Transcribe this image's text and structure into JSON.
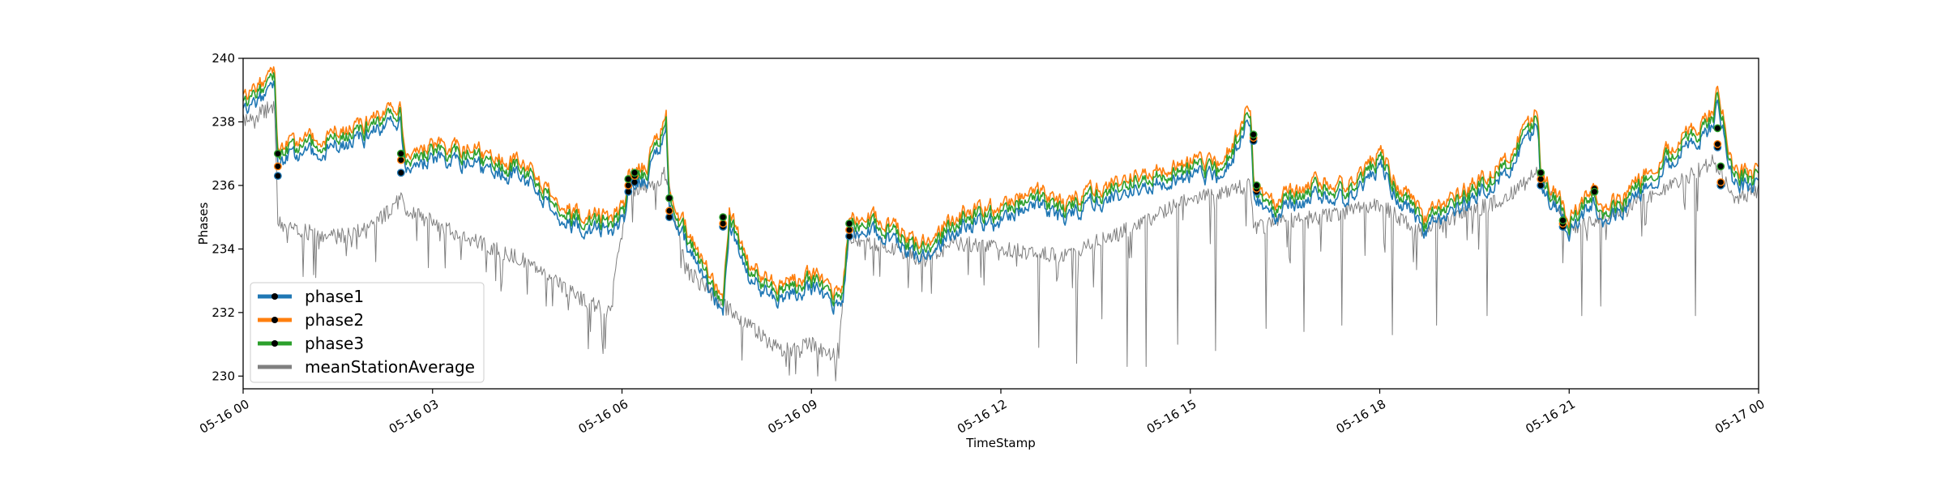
{
  "chart_data": {
    "type": "line",
    "title": "",
    "xlabel": "TimeStamp",
    "ylabel": "Phases",
    "ylim": [
      229.6,
      240
    ],
    "xlim_hours": [
      0,
      24
    ],
    "grid": false,
    "legend_placement": "lower-left",
    "x_ticks": [
      {
        "hour": 0,
        "label": "05-16 00"
      },
      {
        "hour": 3,
        "label": "05-16 03"
      },
      {
        "hour": 6,
        "label": "05-16 06"
      },
      {
        "hour": 9,
        "label": "05-16 09"
      },
      {
        "hour": 12,
        "label": "05-16 12"
      },
      {
        "hour": 15,
        "label": "05-16 15"
      },
      {
        "hour": 18,
        "label": "05-16 18"
      },
      {
        "hour": 21,
        "label": "05-16 21"
      },
      {
        "hour": 24,
        "label": "05-17 00"
      }
    ],
    "y_ticks": [
      230,
      232,
      234,
      236,
      238,
      240
    ],
    "series": [
      {
        "name": "phase1",
        "color": "#1f77b4",
        "marker": "circle-black"
      },
      {
        "name": "phase2",
        "color": "#ff7f0e",
        "marker": "circle-black"
      },
      {
        "name": "phase3",
        "color": "#2ca02c",
        "marker": "circle-black"
      },
      {
        "name": "meanStationAverage",
        "color": "#808080",
        "marker": "none"
      }
    ],
    "phase2_trend": {
      "hour": [
        0.0,
        0.5,
        0.55,
        1.0,
        2.0,
        2.5,
        2.55,
        3.5,
        4.5,
        5.2,
        5.8,
        6.05,
        6.1,
        6.4,
        6.7,
        6.75,
        7.2,
        7.6,
        7.7,
        8.0,
        8.5,
        9.0,
        9.5,
        9.6,
        10.0,
        10.8,
        11.3,
        12.0,
        12.5,
        13.0,
        14.0,
        15.0,
        15.5,
        15.95,
        16.0,
        16.3,
        17.0,
        17.5,
        18.0,
        18.3,
        18.7,
        19.2,
        20.0,
        20.5,
        20.55,
        21.0,
        21.4,
        21.5,
        22.0,
        22.5,
        23.3,
        23.35,
        23.6,
        23.9,
        24.0
      ],
      "value": [
        238.8,
        239.5,
        237.2,
        237.4,
        238.0,
        238.6,
        237.2,
        237.2,
        236.6,
        235.2,
        235.0,
        235.4,
        236.2,
        236.7,
        238.2,
        235.6,
        234.0,
        232.4,
        235.2,
        233.5,
        232.8,
        233.2,
        232.6,
        235.0,
        235.0,
        234.2,
        235.1,
        235.3,
        235.9,
        235.4,
        236.3,
        236.8,
        236.6,
        238.6,
        236.2,
        235.5,
        236.2,
        236.0,
        237.1,
        236.0,
        235.0,
        235.6,
        236.8,
        238.4,
        236.5,
        235.0,
        235.9,
        235.3,
        235.9,
        237.0,
        238.3,
        239.2,
        236.5,
        236.4,
        236.8
      ]
    },
    "station_trend": {
      "hour": [
        0.0,
        0.5,
        0.55,
        0.8,
        1.5,
        2.0,
        2.5,
        2.6,
        3.5,
        4.5,
        5.2,
        5.8,
        6.1,
        6.5,
        6.7,
        7.0,
        7.5,
        8.0,
        8.5,
        9.0,
        9.4,
        9.6,
        10.0,
        10.8,
        11.3,
        12.0,
        13.0,
        14.0,
        15.0,
        15.95,
        16.0,
        16.3,
        17.0,
        18.0,
        18.6,
        19.2,
        20.0,
        20.5,
        21.0,
        21.5,
        22.0,
        23.0,
        23.3,
        23.6,
        24.0
      ],
      "value": [
        238.0,
        238.5,
        234.8,
        234.6,
        234.4,
        234.6,
        235.6,
        235.2,
        234.4,
        233.6,
        232.6,
        232.0,
        235.8,
        236.0,
        236.4,
        233.4,
        232.4,
        231.6,
        230.8,
        231.0,
        230.6,
        234.4,
        234.2,
        233.6,
        234.2,
        234.0,
        233.8,
        234.6,
        235.6,
        236.0,
        234.6,
        234.8,
        235.0,
        235.4,
        234.6,
        235.0,
        235.6,
        236.4,
        234.6,
        235.0,
        235.4,
        236.4,
        236.8,
        235.6,
        235.8
      ]
    },
    "station_dips": [
      {
        "hour": 0.7,
        "value": 234.2
      },
      {
        "hour": 1.2,
        "value": 234.0
      },
      {
        "hour": 1.8,
        "value": 234.0
      },
      {
        "hour": 2.1,
        "value": 233.6
      },
      {
        "hour": 3.2,
        "value": 233.4
      },
      {
        "hour": 4.0,
        "value": 233.0
      },
      {
        "hour": 4.8,
        "value": 232.2
      },
      {
        "hour": 5.5,
        "value": 231.4
      },
      {
        "hour": 7.9,
        "value": 230.5
      },
      {
        "hour": 8.6,
        "value": 230.3
      },
      {
        "hour": 9.1,
        "value": 230.0
      },
      {
        "hour": 10.9,
        "value": 232.6
      },
      {
        "hour": 12.6,
        "value": 230.9
      },
      {
        "hour": 13.2,
        "value": 230.4
      },
      {
        "hour": 13.6,
        "value": 231.8
      },
      {
        "hour": 14.0,
        "value": 230.3
      },
      {
        "hour": 14.3,
        "value": 230.3
      },
      {
        "hour": 14.8,
        "value": 231.0
      },
      {
        "hour": 15.4,
        "value": 230.8
      },
      {
        "hour": 16.2,
        "value": 231.5
      },
      {
        "hour": 16.8,
        "value": 231.4
      },
      {
        "hour": 17.4,
        "value": 231.6
      },
      {
        "hour": 18.2,
        "value": 231.3
      },
      {
        "hour": 18.9,
        "value": 231.6
      },
      {
        "hour": 19.7,
        "value": 231.9
      },
      {
        "hour": 21.2,
        "value": 231.9
      },
      {
        "hour": 21.5,
        "value": 232.2
      },
      {
        "hour": 23.0,
        "value": 231.9
      }
    ],
    "markers": [
      {
        "hour": 0.55,
        "values": [
          236.3,
          236.6,
          237.0
        ]
      },
      {
        "hour": 2.5,
        "values": [
          236.4,
          236.8,
          237.0
        ]
      },
      {
        "hour": 6.1,
        "values": [
          235.8,
          236.0,
          236.2
        ]
      },
      {
        "hour": 6.2,
        "values": [
          236.1,
          236.3,
          236.4
        ]
      },
      {
        "hour": 6.75,
        "values": [
          235.0,
          235.2,
          235.6
        ]
      },
      {
        "hour": 7.6,
        "values": [
          234.7,
          234.8,
          235.0
        ]
      },
      {
        "hour": 9.6,
        "values": [
          234.4,
          234.6,
          234.8
        ]
      },
      {
        "hour": 16.0,
        "values": [
          237.4,
          237.5,
          237.6
        ]
      },
      {
        "hour": 16.05,
        "values": [
          235.8,
          235.9,
          236.0
        ]
      },
      {
        "hour": 20.55,
        "values": [
          236.0,
          236.2,
          236.4
        ]
      },
      {
        "hour": 20.9,
        "values": [
          234.7,
          234.8,
          234.9
        ]
      },
      {
        "hour": 21.4,
        "values": [
          235.8,
          235.9,
          235.8
        ]
      },
      {
        "hour": 23.35,
        "values": [
          237.2,
          237.3,
          237.8
        ]
      },
      {
        "hour": 23.4,
        "values": [
          236.0,
          236.1,
          236.6
        ]
      }
    ]
  }
}
